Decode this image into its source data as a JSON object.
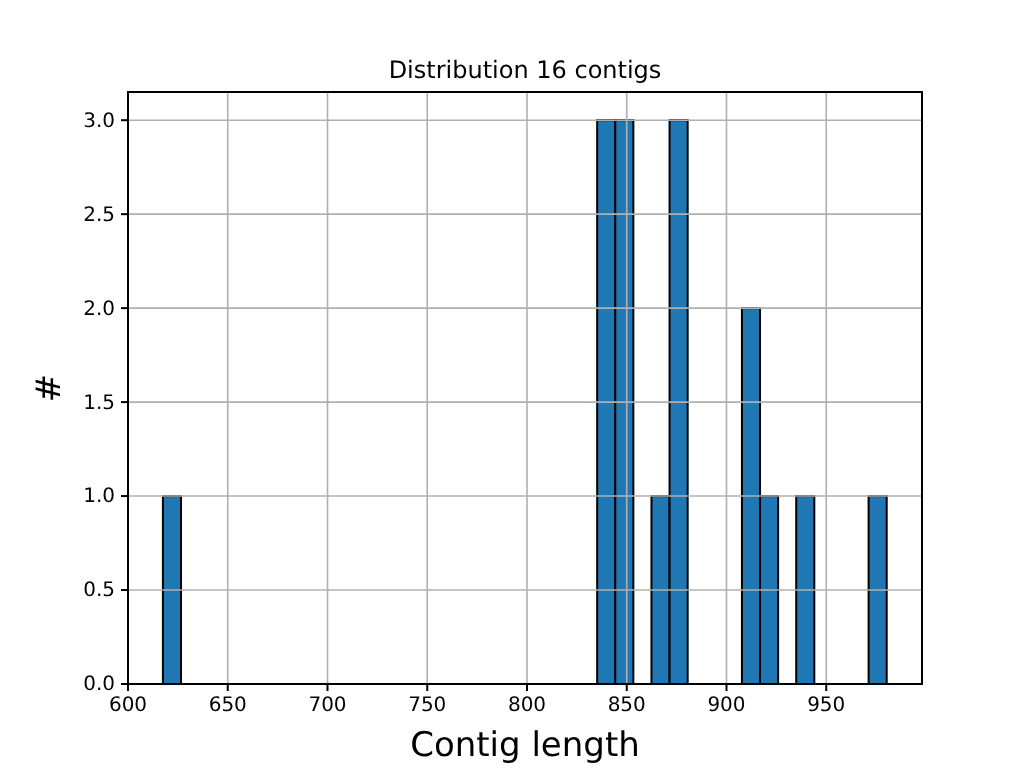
{
  "chart_data": {
    "type": "histogram",
    "title": "Distribution 16 contigs",
    "xlabel": "Contig length",
    "ylabel": "#",
    "bins": [
      617.5,
      626.57,
      635.64,
      644.71,
      653.78,
      662.85,
      671.92,
      680.99,
      690.06,
      699.13,
      708.2,
      717.27,
      726.34,
      735.41,
      744.48,
      753.55,
      762.62,
      771.69,
      780.76,
      789.83,
      798.9,
      807.97,
      817.04,
      826.11,
      835.18,
      844.25,
      853.32,
      862.39,
      871.46,
      880.53,
      889.6,
      898.67,
      907.74,
      916.81,
      925.88,
      934.95,
      944.02,
      953.09,
      962.16,
      971.23,
      980.3
    ],
    "values": [
      1,
      0,
      0,
      0,
      0,
      0,
      0,
      0,
      0,
      0,
      0,
      0,
      0,
      0,
      0,
      0,
      0,
      0,
      0,
      0,
      0,
      0,
      0,
      0,
      3,
      3,
      0,
      1,
      3,
      0,
      0,
      0,
      2,
      1,
      0,
      1,
      0,
      0,
      0,
      1
    ],
    "color": "#1f77b4",
    "xlim": [
      600,
      998
    ],
    "xticks": [
      600,
      650,
      700,
      750,
      800,
      850,
      900,
      950
    ],
    "ylim": [
      0,
      3.15
    ],
    "yticks": [
      {
        "value": 0,
        "label": "0.0"
      },
      {
        "value": 0.5,
        "label": "0.5"
      },
      {
        "value": 1,
        "label": "1.0"
      },
      {
        "value": 1.5,
        "label": "1.5"
      },
      {
        "value": 2,
        "label": "2.0"
      },
      {
        "value": 2.5,
        "label": "2.5"
      },
      {
        "value": 3,
        "label": "3.0"
      }
    ],
    "grid": true
  }
}
